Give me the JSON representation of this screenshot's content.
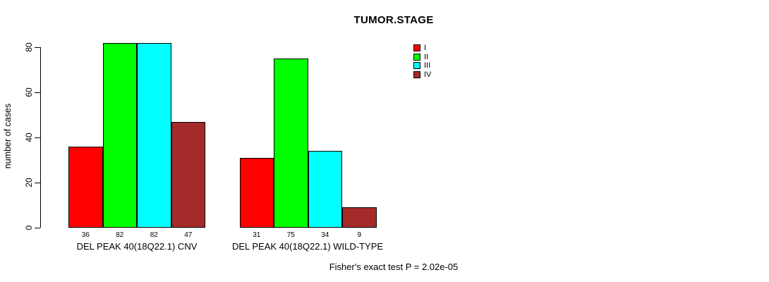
{
  "title": "TUMOR.STAGE",
  "footer": "Fisher's exact test P = 2.02e-05",
  "chart_data": {
    "type": "bar",
    "title": "TUMOR.STAGE",
    "xlabel": "",
    "ylabel": "number of cases",
    "ylim": [
      0,
      80
    ],
    "yticks": [
      0,
      20,
      40,
      60,
      80
    ],
    "grid": false,
    "legend_position": "top-right",
    "categories": [
      "DEL PEAK 40(18Q22.1) CNV",
      "DEL PEAK 40(18Q22.1) WILD-TYPE"
    ],
    "series": [
      {
        "name": "I",
        "color": "#FF0000",
        "values": [
          36,
          31
        ]
      },
      {
        "name": "II",
        "color": "#00FF00",
        "values": [
          82,
          75
        ]
      },
      {
        "name": "III",
        "color": "#00FFFF",
        "values": [
          82,
          34
        ]
      },
      {
        "name": "IV",
        "color": "#A52A2A",
        "values": [
          47,
          9
        ]
      }
    ],
    "bar_value_labels": [
      [
        36,
        82,
        82,
        47
      ],
      [
        31,
        75,
        34,
        9
      ]
    ],
    "annotation": "Fisher's exact test P = 2.02e-05"
  }
}
